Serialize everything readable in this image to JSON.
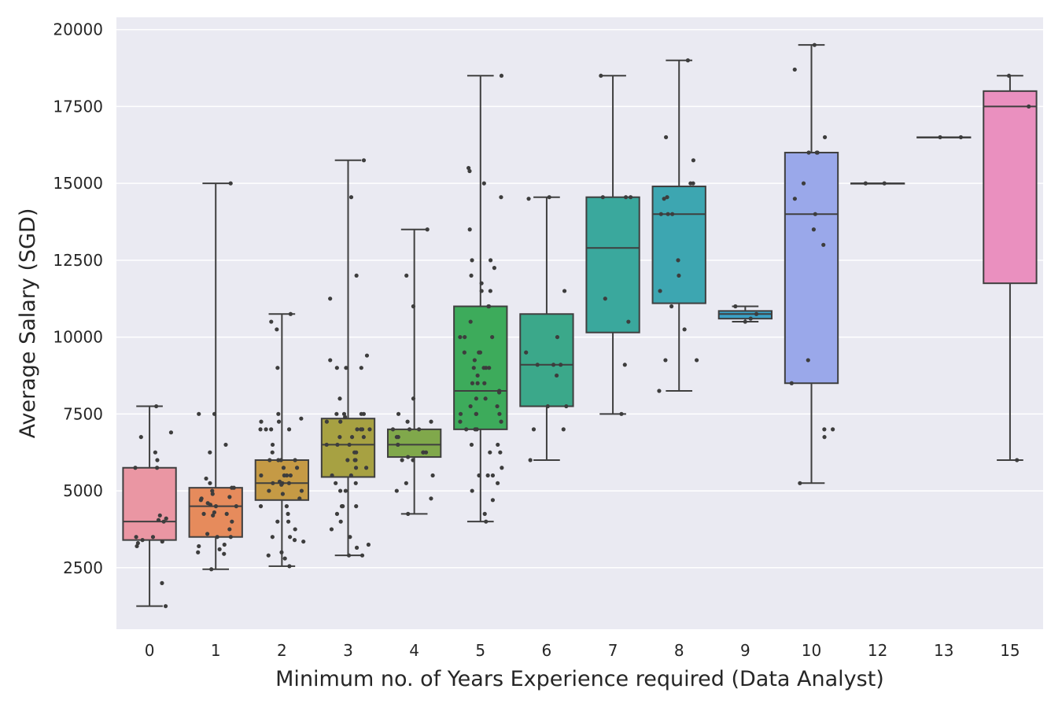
{
  "chart_data": {
    "type": "box",
    "title": "",
    "xlabel": "Minimum no. of Years Experience required (Data Analyst)",
    "ylabel": "Average Salary (SGD)",
    "ylim": [
      500,
      20400
    ],
    "y_ticks": [
      2500,
      5000,
      7500,
      10000,
      12500,
      15000,
      17500,
      20000
    ],
    "grid": true,
    "categories": [
      "0",
      "1",
      "2",
      "3",
      "4",
      "5",
      "6",
      "7",
      "8",
      "9",
      "10",
      "12",
      "13",
      "15"
    ],
    "colors": [
      "#ea96a3",
      "#e68b5c",
      "#c59a45",
      "#a7a142",
      "#80a84b",
      "#3dab5b",
      "#3ba88a",
      "#3aa89d",
      "#3da6b1",
      "#3ba1c6",
      "#9aa8ea",
      "#c99ae9",
      "#e48fe0",
      "#ea90bf"
    ],
    "boxes": [
      {
        "category": "0",
        "whisker_low": 1250,
        "q1": 3400,
        "median": 4000,
        "q3": 5750,
        "whisker_high": 7750
      },
      {
        "category": "1",
        "whisker_low": 2450,
        "q1": 3500,
        "median": 4500,
        "q3": 5100,
        "whisker_high": 15000
      },
      {
        "category": "2",
        "whisker_low": 2550,
        "q1": 4700,
        "median": 5250,
        "q3": 6000,
        "whisker_high": 10750
      },
      {
        "category": "3",
        "whisker_low": 2900,
        "q1": 5450,
        "median": 6500,
        "q3": 7350,
        "whisker_high": 15750
      },
      {
        "category": "4",
        "whisker_low": 4250,
        "q1": 6100,
        "median": 6500,
        "q3": 7000,
        "whisker_high": 13500
      },
      {
        "category": "5",
        "whisker_low": 4000,
        "q1": 7000,
        "median": 8250,
        "q3": 11000,
        "whisker_high": 18500
      },
      {
        "category": "6",
        "whisker_low": 6000,
        "q1": 7750,
        "median": 9100,
        "q3": 10750,
        "whisker_high": 14550
      },
      {
        "category": "7",
        "whisker_low": 7500,
        "q1": 10150,
        "median": 12900,
        "q3": 14550,
        "whisker_high": 18500
      },
      {
        "category": "8",
        "whisker_low": 8250,
        "q1": 11100,
        "median": 14000,
        "q3": 14900,
        "whisker_high": 19000
      },
      {
        "category": "9",
        "whisker_low": 10500,
        "q1": 10600,
        "median": 10750,
        "q3": 10850,
        "whisker_high": 11000
      },
      {
        "category": "10",
        "whisker_low": 5250,
        "q1": 8500,
        "median": 14000,
        "q3": 16000,
        "whisker_high": 19500
      },
      {
        "category": "12",
        "whisker_low": 15000,
        "q1": 15000,
        "median": 15000,
        "q3": 15000,
        "whisker_high": 15000
      },
      {
        "category": "13",
        "whisker_low": 16500,
        "q1": 16500,
        "median": 16500,
        "q3": 16500,
        "whisker_high": 16500
      },
      {
        "category": "15",
        "whisker_low": 6000,
        "q1": 11750,
        "median": 17500,
        "q3": 18000,
        "whisker_high": 18500
      }
    ],
    "points": [
      {
        "category": "0",
        "values": [
          7750,
          6750,
          6250,
          6900,
          6000,
          5750,
          5750,
          4100,
          4050,
          4000,
          4200,
          3400,
          3350,
          3500,
          3500,
          3300,
          3200,
          2000,
          1250
        ]
      },
      {
        "category": "1",
        "values": [
          15000,
          7500,
          7500,
          6500,
          6250,
          5400,
          5250,
          5100,
          5100,
          5000,
          4900,
          4800,
          4750,
          4700,
          4600,
          4550,
          4500,
          4500,
          4300,
          4250,
          4250,
          4200,
          4000,
          3750,
          3600,
          3500,
          3500,
          3250,
          3200,
          3100,
          3000,
          2950,
          2450
        ]
      },
      {
        "category": "2",
        "values": [
          10750,
          10500,
          10250,
          9000,
          7500,
          7350,
          7250,
          7250,
          7000,
          7000,
          7000,
          7000,
          6500,
          6250,
          6000,
          6000,
          6000,
          6000,
          5750,
          5750,
          5500,
          5500,
          5500,
          5500,
          5300,
          5250,
          5250,
          5250,
          5200,
          5000,
          5000,
          4900,
          4750,
          4500,
          4500,
          4250,
          4000,
          4000,
          3750,
          3500,
          3500,
          3400,
          3350,
          3000,
          2900,
          2800,
          2550
        ]
      },
      {
        "category": "3",
        "values": [
          15750,
          14550,
          12000,
          11250,
          9400,
          9250,
          9000,
          9000,
          9000,
          8000,
          7500,
          7500,
          7500,
          7500,
          7400,
          7250,
          7250,
          7000,
          7000,
          7000,
          7000,
          6750,
          6750,
          6750,
          6500,
          6500,
          6500,
          6250,
          6250,
          6000,
          6000,
          6000,
          5750,
          5750,
          5500,
          5500,
          5250,
          5250,
          5000,
          5000,
          4500,
          4500,
          4500,
          4250,
          4000,
          3750,
          3500,
          3250,
          3150,
          2900,
          2900
        ]
      },
      {
        "category": "4",
        "values": [
          13500,
          12000,
          11000,
          8000,
          7500,
          7250,
          7250,
          7000,
          7000,
          7000,
          6750,
          6750,
          6500,
          6500,
          6250,
          6250,
          6250,
          6100,
          6000,
          6000,
          5500,
          5250,
          5000,
          4750,
          4250
        ]
      },
      {
        "category": "5",
        "values": [
          18500,
          15500,
          15400,
          15000,
          14550,
          13500,
          12500,
          12500,
          12250,
          12000,
          11750,
          11500,
          11500,
          11000,
          11000,
          10500,
          10000,
          10000,
          10000,
          9500,
          9500,
          9500,
          9250,
          9000,
          9000,
          9000,
          9000,
          8750,
          8500,
          8500,
          8500,
          8250,
          8200,
          8000,
          8000,
          7750,
          7750,
          7500,
          7500,
          7500,
          7500,
          7250,
          7250,
          7000,
          7000,
          7000,
          6500,
          6500,
          6250,
          6250,
          5750,
          5500,
          5500,
          5500,
          5250,
          5000,
          4700,
          4250,
          4000
        ]
      },
      {
        "category": "6",
        "values": [
          14550,
          14500,
          11500,
          10000,
          9500,
          9100,
          9100,
          9100,
          8750,
          7750,
          7750,
          7000,
          7000,
          6000
        ]
      },
      {
        "category": "7",
        "values": [
          18500,
          14550,
          14550,
          14550,
          11250,
          10500,
          9100,
          7500
        ]
      },
      {
        "category": "8",
        "values": [
          19000,
          16500,
          15750,
          15000,
          15000,
          14550,
          14500,
          14000,
          14000,
          14000,
          12500,
          12000,
          11500,
          11000,
          10250,
          9250,
          9250,
          8250
        ]
      },
      {
        "category": "9",
        "values": [
          11000,
          10750,
          10500,
          10600
        ]
      },
      {
        "category": "10",
        "values": [
          19500,
          18700,
          16500,
          16000,
          16000,
          16000,
          15000,
          14500,
          14000,
          13500,
          13000,
          9250,
          8500,
          7000,
          7000,
          6750,
          5250
        ]
      },
      {
        "category": "12",
        "values": [
          15000,
          15000
        ]
      },
      {
        "category": "13",
        "values": [
          16500,
          16500
        ]
      },
      {
        "category": "15",
        "values": [
          18500,
          17500,
          6000
        ]
      }
    ]
  }
}
